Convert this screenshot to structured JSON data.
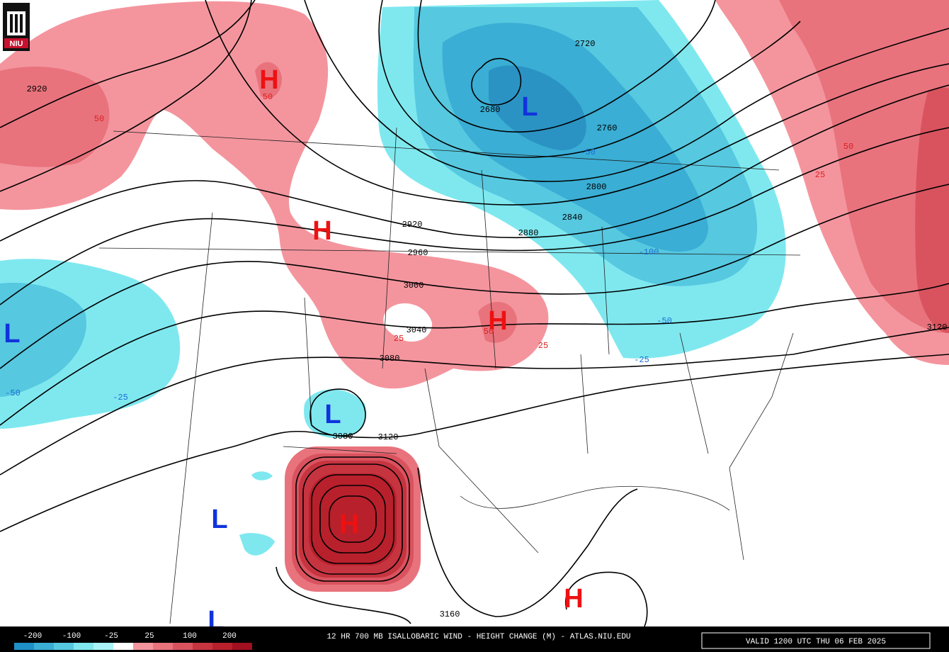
{
  "logo": "NIU",
  "map": {
    "centers": [
      "H",
      "L",
      "H",
      "H",
      "L",
      "L",
      "L",
      "H",
      "H",
      "L"
    ],
    "height_labels": [
      "2920",
      "2680",
      "2720",
      "2760",
      "2800",
      "2840",
      "2880",
      "2920",
      "2960",
      "3000",
      "3040",
      "3080",
      "3080",
      "3120",
      "3160",
      "3120"
    ],
    "change_labels": [
      "50",
      "50",
      "50",
      "25",
      "50",
      "25",
      "25",
      "-50",
      "-100",
      "-50",
      "-25",
      "-50",
      "-25"
    ]
  },
  "colorbar": {
    "labels": [
      "-200",
      "-100",
      "-25",
      "25",
      "100",
      "200"
    ]
  },
  "footer": {
    "title": "12 HR 700 MB ISALLOBARIC WIND - HEIGHT CHANGE (M) - ATLAS.NIU.EDU",
    "valid": "VALID 1200 UTC THU 06 FEB 2025"
  }
}
